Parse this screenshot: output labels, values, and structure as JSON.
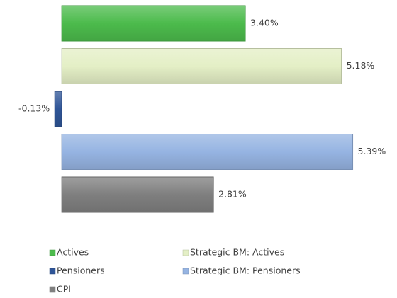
{
  "chart_data": {
    "type": "bar",
    "orientation": "horizontal",
    "xlim": [
      -1,
      6
    ],
    "series": [
      {
        "name": "Actives",
        "color": "#4cbb4c",
        "values": [
          3.4
        ],
        "value_labels": [
          "3.40%"
        ]
      },
      {
        "name": "Strategic BM: Actives",
        "color": "#e4efc6",
        "values": [
          5.18
        ],
        "value_labels": [
          "5.18%"
        ]
      },
      {
        "name": "Pensioners",
        "color": "#2f5597",
        "values": [
          -0.13
        ],
        "value_labels": [
          "-0.13%"
        ]
      },
      {
        "name": "Strategic BM: Pensioners",
        "color": "#96b4e2",
        "values": [
          5.39
        ],
        "value_labels": [
          "5.39%"
        ]
      },
      {
        "name": "CPI",
        "color": "#7f7f7f",
        "values": [
          2.81
        ],
        "value_labels": [
          "2.81%"
        ]
      }
    ]
  }
}
